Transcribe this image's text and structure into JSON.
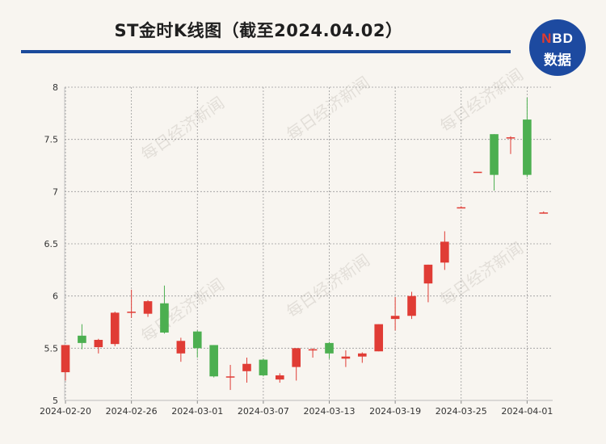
{
  "title": "ST金时K线图（截至2024.04.02）",
  "logo": {
    "text_top_prefix": "N",
    "text_top_rest": "BD",
    "text_bottom": "数据"
  },
  "watermark": "每日经济新闻",
  "colors": {
    "up": "#e03c35",
    "down": "#4caf50",
    "accent": "#1b4a9b"
  },
  "chart_data": {
    "type": "candlestick",
    "title": "ST金时K线图（截至2024.04.02）",
    "ylim": [
      5,
      8
    ],
    "y_ticks": [
      5,
      5.5,
      6,
      6.5,
      7,
      7.5,
      8
    ],
    "y_tick_labels": [
      "5",
      "5.5",
      "6",
      "6.5",
      "7",
      "7.5",
      "8"
    ],
    "x_tick_labels": [
      "2024-02-20",
      "2024-02-26",
      "2024-03-01",
      "2024-03-07",
      "2024-03-13",
      "2024-03-19",
      "2024-03-25",
      "2024-04-01"
    ],
    "x_tick_index": [
      0,
      4,
      8,
      12,
      16,
      20,
      24,
      28
    ],
    "grid": true,
    "candles": [
      {
        "open": 5.27,
        "close": 5.53,
        "high": 5.53,
        "low": 5.19
      },
      {
        "open": 5.62,
        "close": 5.55,
        "high": 5.73,
        "low": 5.49
      },
      {
        "open": 5.51,
        "close": 5.58,
        "high": 5.59,
        "low": 5.45
      },
      {
        "open": 5.54,
        "close": 5.84,
        "high": 5.85,
        "low": 5.52
      },
      {
        "open": 5.84,
        "close": 5.85,
        "high": 6.06,
        "low": 5.79
      },
      {
        "open": 5.83,
        "close": 5.95,
        "high": 5.96,
        "low": 5.8
      },
      {
        "open": 5.93,
        "close": 5.65,
        "high": 6.1,
        "low": 5.64
      },
      {
        "open": 5.45,
        "close": 5.57,
        "high": 5.6,
        "low": 5.37
      },
      {
        "open": 5.66,
        "close": 5.5,
        "high": 5.67,
        "low": 5.41
      },
      {
        "open": 5.53,
        "close": 5.23,
        "high": 5.53,
        "low": 5.22
      },
      {
        "open": 5.22,
        "close": 5.23,
        "high": 5.34,
        "low": 5.1
      },
      {
        "open": 5.28,
        "close": 5.35,
        "high": 5.41,
        "low": 5.17
      },
      {
        "open": 5.39,
        "close": 5.24,
        "high": 5.4,
        "low": 5.23
      },
      {
        "open": 5.2,
        "close": 5.24,
        "high": 5.26,
        "low": 5.17
      },
      {
        "open": 5.32,
        "close": 5.5,
        "high": 5.5,
        "low": 5.19
      },
      {
        "open": 5.48,
        "close": 5.49,
        "high": 5.5,
        "low": 5.41
      },
      {
        "open": 5.55,
        "close": 5.45,
        "high": 5.56,
        "low": 5.4
      },
      {
        "open": 5.4,
        "close": 5.42,
        "high": 5.48,
        "low": 5.32
      },
      {
        "open": 5.42,
        "close": 5.45,
        "high": 5.46,
        "low": 5.36
      },
      {
        "open": 5.47,
        "close": 5.73,
        "high": 5.73,
        "low": 5.47
      },
      {
        "open": 5.78,
        "close": 5.81,
        "high": 5.99,
        "low": 5.67
      },
      {
        "open": 5.81,
        "close": 6.0,
        "high": 6.04,
        "low": 5.78
      },
      {
        "open": 6.12,
        "close": 6.3,
        "high": 6.3,
        "low": 5.94
      },
      {
        "open": 6.32,
        "close": 6.52,
        "high": 6.62,
        "low": 6.25
      },
      {
        "open": 6.85,
        "close": 6.85,
        "high": 6.86,
        "low": 6.84
      },
      {
        "open": 7.19,
        "close": 7.19,
        "high": 7.19,
        "low": 7.19
      },
      {
        "open": 7.55,
        "close": 7.16,
        "high": 7.55,
        "low": 7.01
      },
      {
        "open": 7.51,
        "close": 7.52,
        "high": 7.53,
        "low": 7.36
      },
      {
        "open": 7.69,
        "close": 7.16,
        "high": 7.9,
        "low": 7.14
      },
      {
        "open": 6.8,
        "close": 6.8,
        "high": 6.81,
        "low": 6.79
      }
    ]
  }
}
